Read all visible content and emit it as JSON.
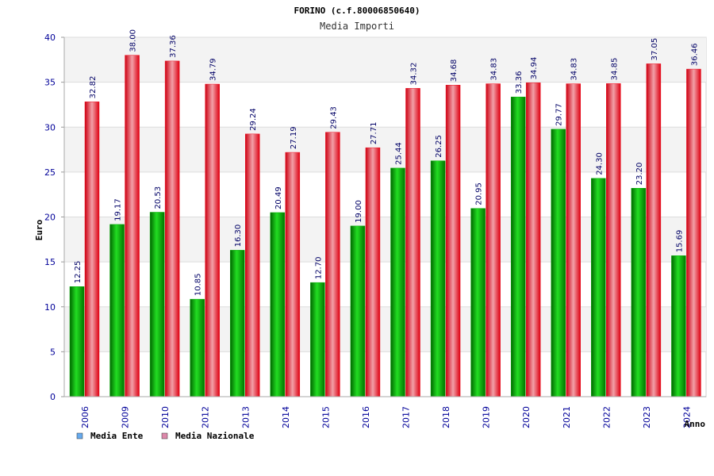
{
  "chart_data": {
    "type": "bar",
    "title": "FORINO (c.f.80006850640)",
    "subtitle": "Media Importi",
    "ylabel": "Euro",
    "xlabel": "Anno",
    "ylim": [
      0,
      40
    ],
    "yticks": [
      0,
      5,
      10,
      15,
      20,
      25,
      30,
      35,
      40
    ],
    "ytick_labels": [
      "0",
      "5",
      "10",
      "15",
      "20",
      "25",
      "30",
      "35",
      "40"
    ],
    "grid": "horizontal, alternating bands",
    "legend_position": "bottom-left",
    "categories": [
      "2006",
      "2009",
      "2010",
      "2012",
      "2013",
      "2014",
      "2015",
      "2016",
      "2017",
      "2018",
      "2019",
      "2020",
      "2021",
      "2022",
      "2023",
      "2024"
    ],
    "series": [
      {
        "name": "Media Ente",
        "values": [
          12.25,
          19.17,
          20.53,
          10.85,
          16.3,
          20.49,
          12.7,
          19.0,
          25.44,
          26.25,
          20.95,
          33.36,
          29.77,
          24.3,
          23.2,
          15.69
        ],
        "labels": [
          "12.25",
          "19.17",
          "20.53",
          "10.85",
          "16.30",
          "20.49",
          "12.70",
          "19.00",
          "25.44",
          "26.25",
          "20.95",
          "33.36",
          "29.77",
          "24.30",
          "23.20",
          "15.69"
        ],
        "color": "#00aa00",
        "legend_color": "#66aaee"
      },
      {
        "name": "Media Nazionale",
        "values": [
          32.82,
          38.0,
          37.36,
          34.79,
          29.24,
          27.19,
          29.43,
          27.71,
          34.32,
          34.68,
          34.83,
          34.94,
          34.83,
          34.85,
          37.05,
          36.46
        ],
        "labels": [
          "32.82",
          "38.00",
          "37.36",
          "34.79",
          "29.24",
          "27.19",
          "29.43",
          "27.71",
          "34.32",
          "34.68",
          "34.83",
          "34.94",
          "34.83",
          "34.85",
          "37.05",
          "36.46"
        ],
        "color": "#ee1122",
        "legend_color": "#dd88aa"
      }
    ]
  }
}
